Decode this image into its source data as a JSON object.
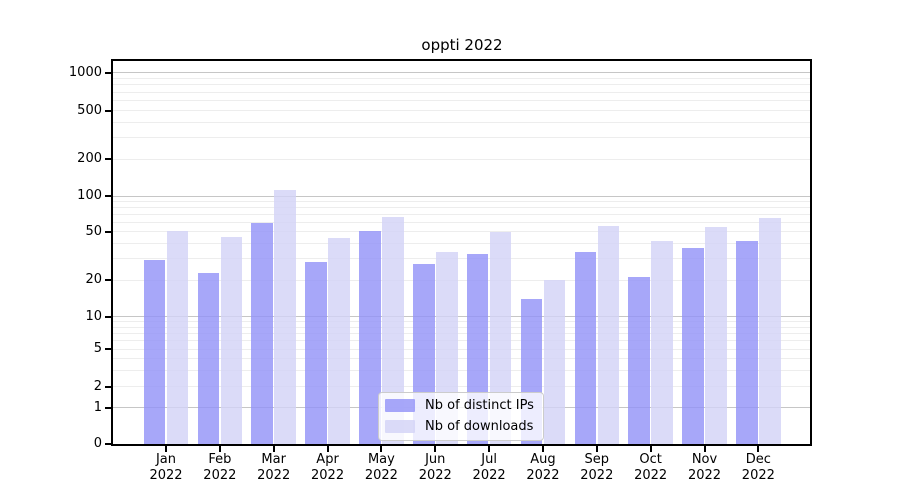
{
  "chart_data": {
    "type": "bar",
    "title": "oppti 2022",
    "categories": [
      "Jan",
      "Feb",
      "Mar",
      "Apr",
      "May",
      "Jun",
      "Jul",
      "Aug",
      "Sep",
      "Oct",
      "Nov",
      "Dec"
    ],
    "category_year": "2022",
    "series": [
      {
        "name": "Nb of distinct IPs",
        "color": "rgba(145,145,247,0.8)",
        "values": [
          29,
          23,
          59,
          28,
          51,
          27,
          33,
          14,
          34,
          21,
          37,
          42
        ]
      },
      {
        "name": "Nb of downloads",
        "color": "rgba(210,210,246,0.8)",
        "values": [
          51,
          45,
          112,
          44,
          66,
          34,
          50,
          20,
          56,
          42,
          55,
          65
        ]
      }
    ],
    "y_axis": {
      "scale": "symlog",
      "ticks": [
        {
          "label": "0",
          "value": 0
        },
        {
          "label": "1",
          "value": 1
        },
        {
          "label": "2",
          "value": 2
        },
        {
          "label": "5",
          "value": 5
        },
        {
          "label": "10",
          "value": 10
        },
        {
          "label": "20",
          "value": 20
        },
        {
          "label": "50",
          "value": 50
        },
        {
          "label": "100",
          "value": 100
        },
        {
          "label": "200",
          "value": 200
        },
        {
          "label": "500",
          "value": 500
        },
        {
          "label": "1000",
          "value": 1000
        }
      ],
      "ylim": [
        0,
        1400
      ]
    },
    "xlabel": "",
    "ylabel": "",
    "legend_position": "lower center",
    "grid": {
      "major_color": "#c6c6c6",
      "minor_color": "#ededed",
      "grid_on": true
    },
    "colors": {
      "background": "#ffffff",
      "axis": "#000000"
    }
  }
}
